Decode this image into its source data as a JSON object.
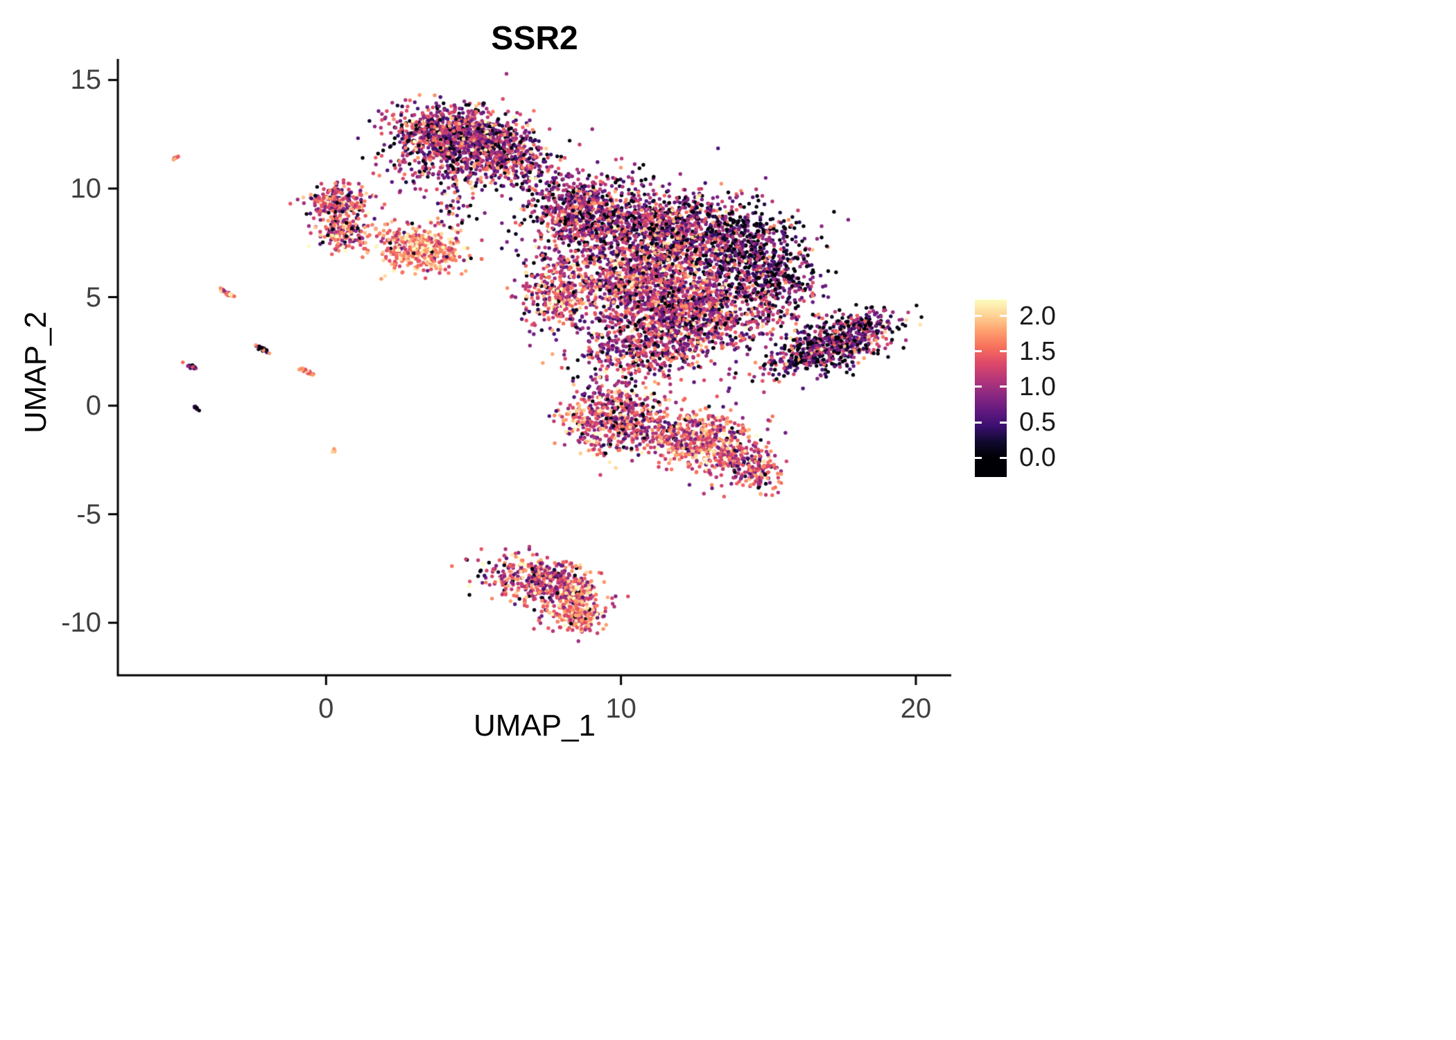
{
  "chart_data": {
    "type": "scatter",
    "title": "SSR2",
    "xlabel": "UMAP_1",
    "ylabel": "UMAP_2",
    "xlim": [
      -7.06,
      21.2
    ],
    "ylim": [
      -12.42,
      15.97
    ],
    "x_ticks": [
      0,
      10,
      20
    ],
    "y_ticks": [
      15,
      10,
      5,
      0,
      -5,
      -10
    ],
    "grid": false,
    "legend_position": "right",
    "point_radius_px": 2.7,
    "seed": 42,
    "color_scale": {
      "name": "magma",
      "domain": [
        0,
        2.2
      ],
      "bar_domain": [
        -0.27,
        2.23
      ],
      "ticks": [
        {
          "value": 2.0,
          "label": "2.0"
        },
        {
          "value": 1.5,
          "label": "1.5"
        },
        {
          "value": 1.0,
          "label": "1.0"
        },
        {
          "value": 0.5,
          "label": "0.5"
        },
        {
          "value": 0.0,
          "label": "0.0"
        }
      ],
      "stops": [
        "#000004",
        "#10092d",
        "#3b0f70",
        "#641a80",
        "#8c2981",
        "#b73779",
        "#de4968",
        "#f7705c",
        "#fe9f6d",
        "#fed395",
        "#fcfdbf"
      ]
    },
    "clusters": [
      {
        "name": "top-main-a",
        "cx": 4.2,
        "cy": 12.5,
        "sx": 1.05,
        "sy": 0.65,
        "angle": 0,
        "n": 850,
        "expr_mean": 1.05,
        "expr_sd": 0.55,
        "zero_frac": 0.1
      },
      {
        "name": "top-main-b",
        "cx": 5.9,
        "cy": 11.7,
        "sx": 0.85,
        "sy": 0.6,
        "angle": -20,
        "n": 480,
        "expr_mean": 1.0,
        "expr_sd": 0.5,
        "zero_frac": 0.1
      },
      {
        "name": "top-main-tail",
        "cx": 3.9,
        "cy": 10.8,
        "sx": 1.1,
        "sy": 0.5,
        "angle": 0,
        "n": 160,
        "expr_mean": 1.0,
        "expr_sd": 0.5,
        "zero_frac": 0.08
      },
      {
        "name": "top-bridge",
        "cx": 7.3,
        "cy": 10.4,
        "sx": 0.8,
        "sy": 0.5,
        "angle": 0,
        "n": 70,
        "expr_mean": 0.9,
        "expr_sd": 0.5,
        "zero_frac": 0.15
      },
      {
        "name": "left-small-upper",
        "cx": 0.45,
        "cy": 9.4,
        "sx": 0.55,
        "sy": 0.42,
        "angle": 0,
        "n": 230,
        "expr_mean": 1.25,
        "expr_sd": 0.5,
        "zero_frac": 0.06
      },
      {
        "name": "left-small-lower",
        "cx": 0.65,
        "cy": 7.9,
        "sx": 0.45,
        "sy": 0.38,
        "angle": 0,
        "n": 150,
        "expr_mean": 1.3,
        "expr_sd": 0.5,
        "zero_frac": 0.05
      },
      {
        "name": "orange-mid",
        "cx": 3.2,
        "cy": 7.2,
        "sx": 0.78,
        "sy": 0.5,
        "angle": -15,
        "n": 400,
        "expr_mean": 1.6,
        "expr_sd": 0.4,
        "zero_frac": 0.02
      },
      {
        "name": "mid-sparse-bridge",
        "cx": 4.4,
        "cy": 9.3,
        "sx": 0.35,
        "sy": 0.8,
        "angle": 0,
        "n": 45,
        "expr_mean": 1.0,
        "expr_sd": 0.5,
        "zero_frac": 0.1
      },
      {
        "name": "main-upper-left",
        "cx": 8.8,
        "cy": 8.7,
        "sx": 1.0,
        "sy": 0.9,
        "angle": 0,
        "n": 750,
        "expr_mean": 0.95,
        "expr_sd": 0.5,
        "zero_frac": 0.12
      },
      {
        "name": "main-top",
        "cx": 11.4,
        "cy": 8.1,
        "sx": 1.3,
        "sy": 0.95,
        "angle": 0,
        "n": 850,
        "expr_mean": 1.0,
        "expr_sd": 0.5,
        "zero_frac": 0.15
      },
      {
        "name": "main-right-dark",
        "cx": 13.9,
        "cy": 7.3,
        "sx": 1.15,
        "sy": 1.0,
        "angle": 0,
        "n": 650,
        "expr_mean": 0.7,
        "expr_sd": 0.5,
        "zero_frac": 0.28
      },
      {
        "name": "main-core",
        "cx": 10.9,
        "cy": 5.6,
        "sx": 1.4,
        "sy": 1.0,
        "angle": 0,
        "n": 1000,
        "expr_mean": 1.2,
        "expr_sd": 0.5,
        "zero_frac": 0.07
      },
      {
        "name": "main-lower",
        "cx": 12.6,
        "cy": 4.1,
        "sx": 1.4,
        "sy": 0.9,
        "angle": 0,
        "n": 750,
        "expr_mean": 1.1,
        "expr_sd": 0.5,
        "zero_frac": 0.08
      },
      {
        "name": "main-left-lobe",
        "cx": 7.8,
        "cy": 5.2,
        "sx": 0.65,
        "sy": 0.85,
        "angle": 0,
        "n": 300,
        "expr_mean": 1.3,
        "expr_sd": 0.5,
        "zero_frac": 0.05
      },
      {
        "name": "main-bottom-tail",
        "cx": 10.6,
        "cy": 2.6,
        "sx": 1.1,
        "sy": 0.75,
        "angle": 0,
        "n": 420,
        "expr_mean": 1.05,
        "expr_sd": 0.5,
        "zero_frac": 0.08
      },
      {
        "name": "main-right-ext",
        "cx": 15.3,
        "cy": 5.7,
        "sx": 0.75,
        "sy": 0.95,
        "angle": 0,
        "n": 320,
        "expr_mean": 0.8,
        "expr_sd": 0.5,
        "zero_frac": 0.2
      },
      {
        "name": "right-arm",
        "cx": 17.2,
        "cy": 2.9,
        "sx": 1.25,
        "sy": 0.5,
        "angle": 28,
        "n": 700,
        "expr_mean": 0.85,
        "expr_sd": 0.55,
        "zero_frac": 0.22
      },
      {
        "name": "lower-left-lobe",
        "cx": 9.7,
        "cy": -0.4,
        "sx": 0.85,
        "sy": 0.85,
        "angle": 0,
        "n": 480,
        "expr_mean": 1.25,
        "expr_sd": 0.5,
        "zero_frac": 0.06
      },
      {
        "name": "lower-mid-lobe",
        "cx": 11.6,
        "cy": -1.2,
        "sx": 1.0,
        "sy": 0.6,
        "angle": -10,
        "n": 350,
        "expr_mean": 1.3,
        "expr_sd": 0.45,
        "zero_frac": 0.06
      },
      {
        "name": "lower-right-lobe",
        "cx": 13.3,
        "cy": -1.9,
        "sx": 0.9,
        "sy": 0.65,
        "angle": -20,
        "n": 380,
        "expr_mean": 1.4,
        "expr_sd": 0.45,
        "zero_frac": 0.05
      },
      {
        "name": "lower-tail",
        "cx": 14.5,
        "cy": -3.0,
        "sx": 0.5,
        "sy": 0.45,
        "angle": -30,
        "n": 140,
        "expr_mean": 1.3,
        "expr_sd": 0.45,
        "zero_frac": 0.05
      },
      {
        "name": "bottom-a",
        "cx": 7.0,
        "cy": -7.9,
        "sx": 0.85,
        "sy": 0.5,
        "angle": -10,
        "n": 340,
        "expr_mean": 1.3,
        "expr_sd": 0.5,
        "zero_frac": 0.05
      },
      {
        "name": "bottom-b",
        "cx": 8.2,
        "cy": -8.9,
        "sx": 0.6,
        "sy": 0.55,
        "angle": 0,
        "n": 300,
        "expr_mean": 1.4,
        "expr_sd": 0.45,
        "zero_frac": 0.04
      },
      {
        "name": "bottom-c",
        "cx": 8.6,
        "cy": -9.8,
        "sx": 0.38,
        "sy": 0.32,
        "angle": 0,
        "n": 120,
        "expr_mean": 1.5,
        "expr_sd": 0.4,
        "zero_frac": 0.03
      },
      {
        "name": "streak-1",
        "cx": -5.1,
        "cy": 11.4,
        "sx": 0.07,
        "sy": 0.03,
        "angle": 35,
        "n": 10,
        "expr_mean": 1.7,
        "expr_sd": 0.25,
        "zero_frac": 0.0
      },
      {
        "name": "streak-2",
        "cx": -3.35,
        "cy": 5.2,
        "sx": 0.16,
        "sy": 0.04,
        "angle": -40,
        "n": 26,
        "expr_mean": 1.5,
        "expr_sd": 0.45,
        "zero_frac": 0.1
      },
      {
        "name": "streak-3",
        "cx": -2.15,
        "cy": 2.6,
        "sx": 0.13,
        "sy": 0.04,
        "angle": -40,
        "n": 22,
        "expr_mean": 1.0,
        "expr_sd": 0.6,
        "zero_frac": 0.2
      },
      {
        "name": "streak-4",
        "cx": -4.55,
        "cy": 1.8,
        "sx": 0.11,
        "sy": 0.04,
        "angle": -40,
        "n": 18,
        "expr_mean": 0.7,
        "expr_sd": 0.5,
        "zero_frac": 0.3
      },
      {
        "name": "streak-5",
        "cx": -0.65,
        "cy": 1.55,
        "sx": 0.16,
        "sy": 0.04,
        "angle": -35,
        "n": 24,
        "expr_mean": 1.6,
        "expr_sd": 0.35,
        "zero_frac": 0.05
      },
      {
        "name": "streak-6",
        "cx": -4.4,
        "cy": -0.1,
        "sx": 0.06,
        "sy": 0.03,
        "angle": -40,
        "n": 9,
        "expr_mean": 0.35,
        "expr_sd": 0.3,
        "zero_frac": 0.3
      },
      {
        "name": "dot-7",
        "cx": 0.25,
        "cy": -2.1,
        "sx": 0.04,
        "sy": 0.03,
        "angle": 0,
        "n": 5,
        "expr_mean": 1.5,
        "expr_sd": 0.3,
        "zero_frac": 0.0
      }
    ]
  }
}
